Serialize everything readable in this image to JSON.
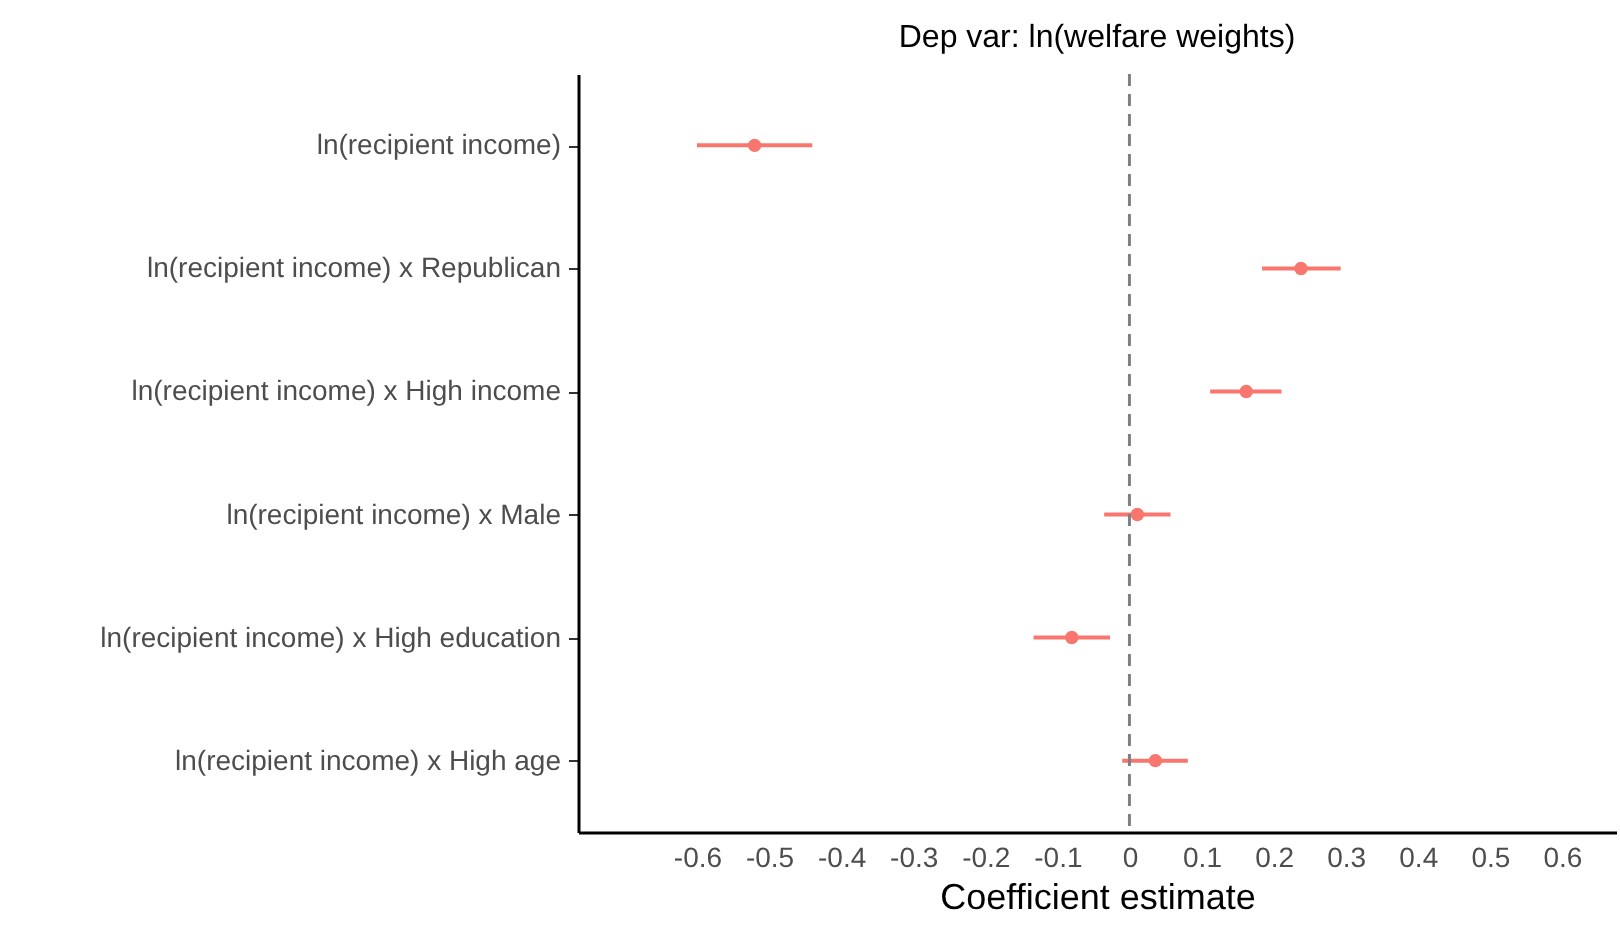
{
  "chart_data": {
    "type": "scatter",
    "orientation": "horizontal",
    "title": "Dep var: ln(welfare weights)",
    "xlabel": "Coefficient estimate",
    "categories": [
      "ln(recipient income)",
      "ln(recipient income) x Republican",
      "ln(recipient income) x High income",
      "ln(recipient income) x Male",
      "ln(recipient income) x High education",
      "ln(recipient income) x High age"
    ],
    "series": [
      {
        "color": "#f8766d",
        "values": [
          -0.52,
          0.238,
          0.162,
          0.011,
          -0.08,
          0.036
        ],
        "errors": [
          [
            -0.6,
            -0.44
          ],
          [
            0.184,
            0.293
          ],
          [
            0.112,
            0.211
          ],
          [
            -0.035,
            0.057
          ],
          [
            -0.133,
            -0.027
          ],
          [
            -0.01,
            0.081
          ]
        ]
      }
    ],
    "xlim": [
      -0.765,
      0.675
    ],
    "xticks": [
      -0.6,
      -0.5,
      -0.4,
      -0.3,
      -0.2,
      -0.1,
      0,
      0.1,
      0.2,
      0.3,
      0.4,
      0.5,
      0.6
    ],
    "ref_lines": [
      {
        "axis": "x",
        "value": 0,
        "color": "#808080",
        "line_style": "dashed"
      }
    ],
    "grid": false,
    "marker": "circle"
  }
}
